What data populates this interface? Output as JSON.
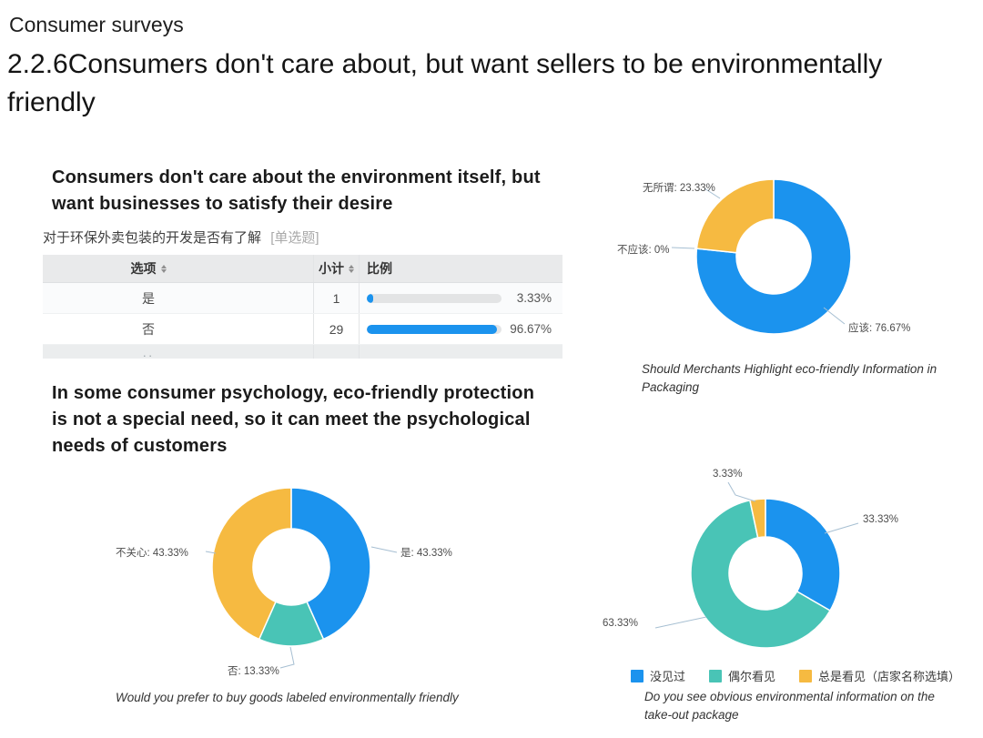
{
  "slide": {
    "kicker": "Consumer surveys",
    "title": "2.2.6Consumers don't care about, but want sellers to be environmentally friendly"
  },
  "sections": {
    "left_top_heading": "Consumers don't care about the environment itself, but want businesses to satisfy their desire",
    "left_bottom_heading": "In some consumer psychology, eco-friendly protection is not a special need, so it can meet the psychological needs of customers"
  },
  "colors": {
    "blue": "#1B93EE",
    "teal": "#49C4B6",
    "yellow": "#F6BA41",
    "bar_track": "#E3E4E5",
    "leader": "#A6BFD2"
  },
  "chart_data": [
    {
      "type": "table",
      "title": "对于环保外卖包装的开发是否有了解",
      "title_tag": "[单选题]",
      "columns": [
        "选项",
        "小计",
        "比例"
      ],
      "rows": [
        {
          "option": "是",
          "count": "1",
          "percent": "3.33%",
          "value": 3.33
        },
        {
          "option": "否",
          "count": "29",
          "percent": "96.67%",
          "value": 96.67
        }
      ],
      "truncated_row_hint": "··"
    },
    {
      "type": "pie",
      "donut": true,
      "caption": "Should Merchants Highlight eco-friendly Information in Packaging",
      "slices": [
        {
          "label": "应该",
          "value": 76.67,
          "display": "应该: 76.67%",
          "color": "#1B93EE"
        },
        {
          "label": "不应该",
          "value": 0,
          "display": "不应该: 0%",
          "color": "#9AA7B0"
        },
        {
          "label": "无所谓",
          "value": 23.33,
          "display": "无所谓: 23.33%",
          "color": "#F6BA41"
        }
      ]
    },
    {
      "type": "pie",
      "donut": true,
      "caption": "Would you prefer to buy goods labeled environmentally friendly",
      "slices": [
        {
          "label": "是",
          "value": 43.33,
          "display": "是: 43.33%",
          "color": "#1B93EE"
        },
        {
          "label": "否",
          "value": 13.33,
          "display": "否: 13.33%",
          "color": "#49C4B6"
        },
        {
          "label": "不关心",
          "value": 43.33,
          "display": "不关心: 43.33%",
          "color": "#F6BA41"
        }
      ]
    },
    {
      "type": "pie",
      "donut": true,
      "caption": "Do you see obvious environmental information on the take-out package",
      "slices": [
        {
          "label": "没见过",
          "value": 33.33,
          "display": "33.33%",
          "color": "#1B93EE"
        },
        {
          "label": "偶尔看见",
          "value": 63.33,
          "display": "63.33%",
          "color": "#49C4B6"
        },
        {
          "label": "总是看见（店家名称选填）",
          "value": 3.33,
          "display": "3.33%",
          "color": "#F6BA41"
        }
      ],
      "legend": [
        "没见过",
        "偶尔看见",
        "总是看见（店家名称选填）"
      ]
    }
  ]
}
